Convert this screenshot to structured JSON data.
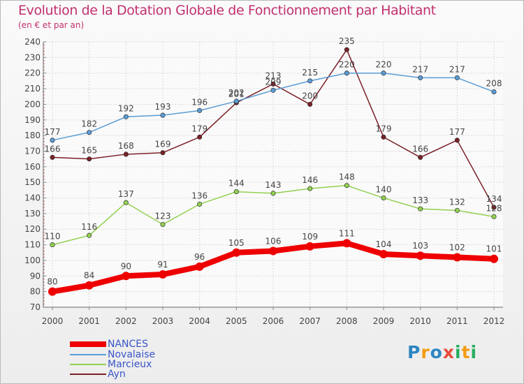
{
  "chart_data": {
    "type": "line",
    "title": "Evolution de la Dotation Globale de Fonctionnement par Habitant",
    "subtitle": "(en € et par an)",
    "xlabel": "",
    "ylabel": "",
    "categories": [
      "2000",
      "2001",
      "2002",
      "2003",
      "2004",
      "2005",
      "2006",
      "2007",
      "2008",
      "2009",
      "2010",
      "2011",
      "2012"
    ],
    "ylim": [
      70,
      240
    ],
    "yticks": [
      70,
      80,
      90,
      100,
      110,
      120,
      130,
      140,
      150,
      160,
      170,
      180,
      190,
      200,
      210,
      220,
      230,
      240
    ],
    "grid": true,
    "legend_position": "bottom-left",
    "series": [
      {
        "name": "NANCES",
        "color": "#ee0000",
        "values": [
          80,
          84,
          90,
          91,
          96,
          105,
          106,
          109,
          111,
          104,
          103,
          102,
          101
        ]
      },
      {
        "name": "Novalaise",
        "color": "#5a9cd6",
        "values": [
          177,
          182,
          192,
          193,
          196,
          202,
          209,
          215,
          220,
          220,
          217,
          217,
          208
        ]
      },
      {
        "name": "Marcieux",
        "color": "#92d050",
        "values": [
          110,
          116,
          137,
          123,
          136,
          144,
          143,
          146,
          148,
          140,
          133,
          132,
          128
        ]
      },
      {
        "name": "Ayn",
        "color": "#7b2027",
        "values": [
          166,
          165,
          168,
          169,
          179,
          201,
          213,
          200,
          235,
          179,
          166,
          177,
          134
        ]
      }
    ]
  },
  "logo": {
    "letters": [
      "P",
      "r",
      "o",
      "x",
      "i",
      "t",
      "i"
    ],
    "colors": [
      "#2e86c1",
      "#f39c12",
      "#2e86c1",
      "#e74c3c",
      "#27ae60",
      "#f39c12",
      "#27ae60"
    ]
  }
}
